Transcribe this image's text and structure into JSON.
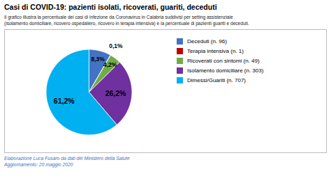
{
  "chart_data": {
    "type": "pie",
    "title": "Casi di COVID-19: pazienti isolati, ricoverati, guariti, deceduti",
    "subtitle": "Il grafico illustra la percentuale dei casi di infezione da Coronavirus in Calabria suddivisi per setting assistenziale\n(isolamento domiciliare, ricovero ospedaliero, ricovero in terapia intensiva) e la percentuale di pazienti guariti e deceduti.",
    "annotations": [
      "Elaborazione Luca Fusaro da dati del Ministero della Salute",
      "Aggiornamento: 20 maggio 2020"
    ],
    "categories": [
      "Deceduti (n. 96)",
      "Terapia intensiva (n. 1)",
      "Ricoverati con sintomi (n. 49)",
      "Isolamento domiciliare (n. 303)",
      "Dimessi/Guariti (n. 707)"
    ],
    "values": [
      8.3,
      0.1,
      4.2,
      26.2,
      61.2
    ],
    "value_labels": [
      "8,3%",
      "0,1%",
      "4,2%",
      "26,2%",
      "61,2%"
    ],
    "colors": [
      "#4472C4",
      "#C00000",
      "#70AD47",
      "#7030A0",
      "#00B0F0"
    ],
    "data_labels": true,
    "legend": "right"
  }
}
